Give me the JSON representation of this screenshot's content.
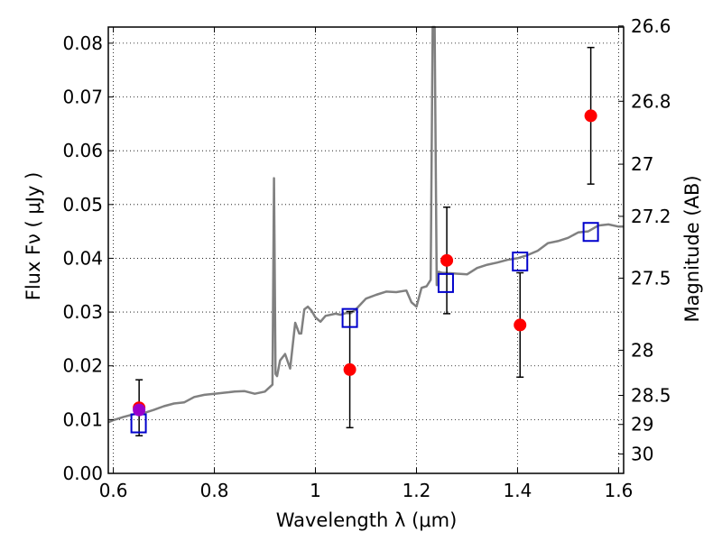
{
  "chart_data": {
    "type": "scatter",
    "xlabel": "Wavelength  λ (μm)",
    "ylabel": "Flux  Fν  ( μJy )",
    "y2label": "Magnitude (AB)",
    "xlim": [
      0.59,
      1.61
    ],
    "ylim": [
      0.0,
      0.083
    ],
    "grid": true,
    "x_ticks": [
      0.6,
      0.8,
      1.0,
      1.2,
      1.4,
      1.6
    ],
    "x_tick_labels": [
      "0.6",
      "0.8",
      "1",
      "1.2",
      "1.4",
      "1.6"
    ],
    "y_ticks": [
      0.0,
      0.01,
      0.02,
      0.03,
      0.04,
      0.05,
      0.06,
      0.07,
      0.08
    ],
    "y_tick_labels": [
      "0.00",
      "0.01",
      "0.02",
      "0.03",
      "0.04",
      "0.05",
      "0.06",
      "0.07",
      "0.08"
    ],
    "magnitude_ticks": [
      {
        "label": "26.6",
        "flux": 0.0832
      },
      {
        "label": "26.8",
        "flux": 0.0692
      },
      {
        "label": "27",
        "flux": 0.0575
      },
      {
        "label": "27.2",
        "flux": 0.0478
      },
      {
        "label": "27.5",
        "flux": 0.0363
      },
      {
        "label": "28",
        "flux": 0.0229
      },
      {
        "label": "28.5",
        "flux": 0.0145
      },
      {
        "label": "29",
        "flux": 0.0091
      },
      {
        "label": "30",
        "flux": 0.0036
      }
    ],
    "series": [
      {
        "kind": "line",
        "color": "#808080",
        "x": [
          0.59,
          0.6,
          0.62,
          0.64,
          0.66,
          0.68,
          0.7,
          0.72,
          0.74,
          0.76,
          0.78,
          0.8,
          0.82,
          0.84,
          0.86,
          0.88,
          0.9,
          0.915,
          0.918,
          0.921,
          0.924,
          0.93,
          0.94,
          0.95,
          0.96,
          0.968,
          0.972,
          0.978,
          0.985,
          0.992,
          1.0,
          1.01,
          1.02,
          1.04,
          1.05,
          1.06,
          1.07,
          1.08,
          1.09,
          1.1,
          1.12,
          1.14,
          1.16,
          1.18,
          1.19,
          1.2,
          1.21,
          1.22,
          1.228,
          1.232,
          1.236,
          1.24,
          1.244,
          1.25,
          1.27,
          1.3,
          1.32,
          1.34,
          1.36,
          1.38,
          1.4,
          1.42,
          1.44,
          1.46,
          1.48,
          1.5,
          1.52,
          1.54,
          1.56,
          1.58,
          1.6,
          1.61
        ],
        "y": [
          0.0095,
          0.0099,
          0.0105,
          0.011,
          0.0112,
          0.0118,
          0.0125,
          0.013,
          0.0132,
          0.0142,
          0.0146,
          0.0148,
          0.015,
          0.0152,
          0.0153,
          0.0148,
          0.0152,
          0.0165,
          0.0549,
          0.0185,
          0.0181,
          0.021,
          0.0222,
          0.0195,
          0.028,
          0.026,
          0.026,
          0.0305,
          0.031,
          0.0303,
          0.029,
          0.0282,
          0.0293,
          0.0297,
          0.0295,
          0.0298,
          0.0298,
          0.0305,
          0.0315,
          0.0325,
          0.0332,
          0.0338,
          0.0337,
          0.034,
          0.0318,
          0.031,
          0.0345,
          0.0348,
          0.036,
          0.083,
          0.083,
          0.035,
          0.0375,
          0.0373,
          0.0372,
          0.037,
          0.0382,
          0.0388,
          0.0392,
          0.0397,
          0.04,
          0.0406,
          0.0414,
          0.0428,
          0.0432,
          0.0438,
          0.0448,
          0.045,
          0.0461,
          0.0463,
          0.0459,
          0.0459
        ]
      },
      {
        "kind": "scatter-errorbar",
        "color": "#ff0000",
        "x": [
          0.651,
          1.068,
          1.26,
          1.405,
          1.545
        ],
        "y": [
          0.0122,
          0.0193,
          0.0396,
          0.0276,
          0.0665
        ],
        "yerr": [
          0.0052,
          0.0108,
          0.0099,
          0.0097,
          0.0127
        ]
      },
      {
        "kind": "marker-square",
        "color": "#0000cc",
        "x": [
          0.65,
          1.068,
          1.258,
          1.405,
          1.545
        ],
        "y": [
          0.0093,
          0.0289,
          0.0354,
          0.0394,
          0.0449
        ]
      },
      {
        "kind": "point",
        "color": "#9900cc",
        "x": [
          0.651
        ],
        "y": [
          0.0118
        ]
      }
    ]
  }
}
